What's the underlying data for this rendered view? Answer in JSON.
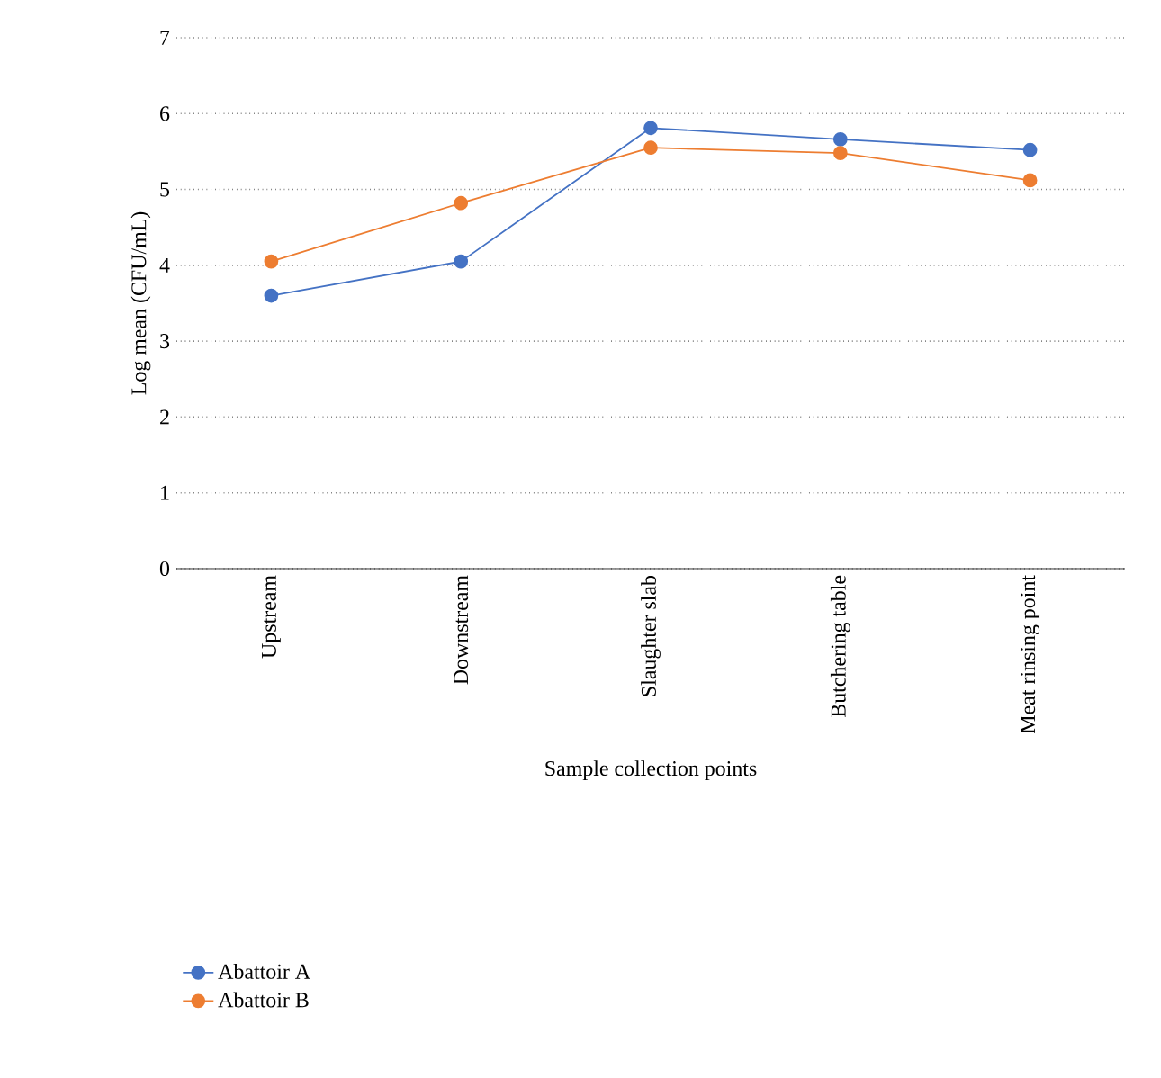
{
  "chart_data": {
    "type": "line",
    "xlabel": "Sample collection points",
    "ylabel": "Log mean (CFU/mL)",
    "categories": [
      "Upstream",
      "Downstream",
      "Slaughter slab",
      "Butchering table",
      "Meat rinsing point"
    ],
    "series": [
      {
        "name": "Abattoir A",
        "color": "#4472c4",
        "values": [
          3.6,
          4.05,
          5.81,
          5.66,
          5.52
        ]
      },
      {
        "name": "Abattoir B",
        "color": "#ed7d31",
        "values": [
          4.05,
          4.82,
          5.55,
          5.48,
          5.12
        ]
      }
    ],
    "ylim": [
      0,
      7
    ],
    "yticks": [
      0,
      1,
      2,
      3,
      4,
      5,
      6,
      7
    ],
    "grid": "y",
    "legend": "bottom",
    "marker": "circle",
    "line_style": "solid"
  }
}
